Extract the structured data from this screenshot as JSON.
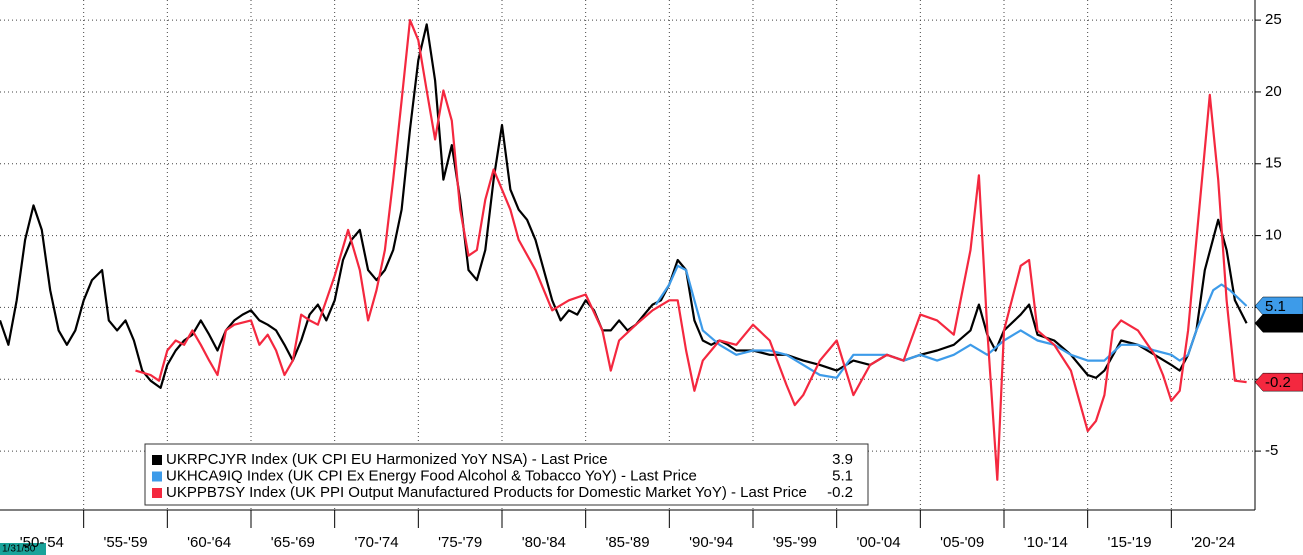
{
  "chart_data": {
    "type": "line",
    "start_label": "1/31/50",
    "categories": [
      "'50-'54",
      "'55-'59",
      "'60-'64",
      "'65-'69",
      "'70-'74",
      "'75-'79",
      "'80-'84",
      "'85-'89",
      "'90-'94",
      "'95-'99",
      "'00-'04",
      "'05-'09",
      "'10-'14",
      "'15-'19",
      "'20-'24"
    ],
    "xlim": [
      1950,
      2025
    ],
    "xticks": [
      1955,
      1960,
      1965,
      1970,
      1975,
      1980,
      1985,
      1990,
      1995,
      2000,
      2005,
      2010,
      2015,
      2020
    ],
    "ylim": [
      -9.1,
      26.4
    ],
    "yticks": [
      -5,
      0,
      5,
      10,
      15,
      20,
      25
    ],
    "grid": true,
    "series": [
      {
        "name": "UKRPCJYR Index (UK CPI EU Harmonized YoY NSA) - Last Price",
        "color": "#000000",
        "x": [
          1950,
          1950.5,
          1951,
          1951.5,
          1952,
          1952.5,
          1953,
          1953.5,
          1954,
          1954.5,
          1955,
          1955.5,
          1956.1,
          1956.5,
          1957,
          1957.5,
          1958,
          1958.5,
          1959,
          1959.6,
          1960,
          1960.5,
          1961,
          1961.5,
          1962,
          1962.5,
          1963,
          1963.5,
          1964,
          1964.5,
          1965,
          1965.5,
          1966,
          1966.5,
          1967,
          1967.5,
          1968,
          1968.5,
          1969,
          1969.5,
          1970,
          1970.5,
          1971,
          1971.5,
          1972,
          1972.5,
          1973,
          1973.5,
          1974,
          1974.5,
          1975,
          1975.5,
          1976,
          1976.5,
          1977,
          1977.5,
          1978,
          1978.5,
          1979,
          1979.5,
          1980,
          1980.5,
          1981,
          1981.5,
          1982,
          1982.5,
          1983,
          1983.5,
          1984,
          1984.5,
          1985,
          1985.5,
          1986,
          1986.5,
          1987,
          1987.5,
          1988,
          1988.5,
          1989,
          1989.5,
          1990,
          1990.5,
          1991,
          1991.5,
          1992,
          1992.5,
          1993,
          1993.5,
          1994,
          1995,
          1996,
          1997,
          1998,
          1999,
          2000,
          2001,
          2002,
          2003,
          2004,
          2005,
          2006,
          2007,
          2008,
          2008.5,
          2009,
          2009.5,
          2010,
          2011,
          2011.5,
          2012,
          2013,
          2014,
          2015,
          2015.5,
          2016,
          2017,
          2018,
          2019,
          2020,
          2020.5,
          2021,
          2021.5,
          2022,
          2022.8,
          2023.3,
          2023.8,
          2024.5
        ],
        "values": [
          4.1,
          2.4,
          5.5,
          9.7,
          12.1,
          10.4,
          6.2,
          3.4,
          2.4,
          3.4,
          5.5,
          6.9,
          7.6,
          4.1,
          3.4,
          4.1,
          2.7,
          0.6,
          -0.1,
          -0.6,
          1.0,
          2.0,
          2.7,
          3.1,
          4.1,
          3.1,
          2.0,
          3.4,
          4.1,
          4.5,
          4.8,
          4.1,
          3.8,
          3.4,
          2.4,
          1.3,
          2.7,
          4.5,
          5.2,
          4.1,
          5.5,
          8.3,
          9.7,
          10.4,
          7.6,
          6.9,
          7.6,
          9.0,
          11.8,
          17.4,
          22.2,
          24.7,
          20.8,
          13.9,
          16.3,
          12.5,
          7.6,
          6.9,
          9.0,
          13.9,
          17.7,
          13.2,
          11.8,
          11.1,
          9.7,
          7.6,
          5.5,
          4.1,
          4.8,
          4.5,
          5.5,
          4.8,
          3.4,
          3.4,
          4.1,
          3.4,
          3.8,
          4.5,
          5.2,
          5.5,
          6.6,
          8.3,
          7.6,
          4.1,
          2.7,
          2.4,
          2.7,
          2.4,
          2.0,
          2.0,
          1.7,
          1.7,
          1.3,
          1.0,
          0.6,
          1.3,
          1.0,
          1.7,
          1.3,
          1.7,
          2.0,
          2.4,
          3.4,
          5.2,
          3.1,
          2.0,
          3.4,
          4.5,
          5.2,
          3.1,
          2.7,
          1.7,
          0.3,
          0.1,
          0.6,
          2.7,
          2.4,
          1.7,
          1.0,
          0.6,
          1.7,
          3.4,
          7.6,
          11.1,
          9.0,
          5.5,
          3.9
        ]
      },
      {
        "name": "UKHCA9IQ Index (UK CPI Ex Energy Food Alcohol & Tobacco YoY) - Last Price",
        "color": "#3d9be9",
        "x": [
          1989.2,
          1990,
          1990.5,
          1991,
          1991.5,
          1992,
          1993,
          1994,
          1995,
          1996,
          1997,
          1998,
          1999,
          2000,
          2001,
          2002,
          2003,
          2004,
          2005,
          2006,
          2007,
          2008,
          2009,
          2010,
          2011,
          2012,
          2013,
          2014,
          2015,
          2016,
          2017,
          2018,
          2019,
          2020,
          2020.5,
          2021,
          2021.5,
          2022,
          2022.5,
          2023,
          2023.5,
          2024.5
        ],
        "values": [
          5.2,
          6.6,
          7.9,
          7.6,
          5.5,
          3.4,
          2.4,
          1.7,
          2.0,
          2.0,
          1.7,
          1.0,
          0.3,
          0.1,
          1.7,
          1.7,
          1.7,
          1.3,
          1.7,
          1.3,
          1.7,
          2.4,
          1.7,
          2.7,
          3.4,
          2.7,
          2.4,
          1.7,
          1.3,
          1.3,
          2.4,
          2.4,
          2.0,
          1.7,
          1.3,
          1.7,
          3.4,
          4.8,
          6.2,
          6.6,
          6.2,
          5.1
        ]
      },
      {
        "name": "UKPPB7SY Index (UK PPI Output Manufactured Products for Domestic Market YoY) - Last Price",
        "color": "#f4283f",
        "x": [
          1958.1,
          1959,
          1959.5,
          1960,
          1960.5,
          1961,
          1961.5,
          1962,
          1962.5,
          1963,
          1963.5,
          1964,
          1965,
          1965.5,
          1966,
          1966.5,
          1967,
          1967.5,
          1968,
          1968.5,
          1969,
          1970,
          1970.8,
          1971.5,
          1972,
          1972.5,
          1973,
          1973.5,
          1974,
          1974.5,
          1975,
          1975.5,
          1976,
          1976.5,
          1977,
          1977.5,
          1978,
          1978.5,
          1979,
          1979.5,
          1980,
          1980.5,
          1981,
          1982,
          1983,
          1984,
          1985,
          1986,
          1986.5,
          1987,
          1988,
          1989,
          1990,
          1990.5,
          1991,
          1991.5,
          1992,
          1993,
          1994,
          1995,
          1996,
          1997,
          1997.5,
          1998,
          1999,
          2000,
          2001,
          2002,
          2003,
          2004,
          2005,
          2006,
          2007,
          2008,
          2008.5,
          2009,
          2009.6,
          2010,
          2011,
          2011.5,
          2012,
          2013,
          2014,
          2014.5,
          2015,
          2015.5,
          2016,
          2016.5,
          2017,
          2018,
          2019,
          2019.5,
          2020,
          2020.5,
          2021,
          2021.5,
          2022,
          2022.3,
          2022.8,
          2023.3,
          2023.8,
          2024.5
        ],
        "values": [
          0.6,
          0.3,
          -0.1,
          2.0,
          2.7,
          2.4,
          3.4,
          2.4,
          1.3,
          0.3,
          3.4,
          3.8,
          4.1,
          2.4,
          3.1,
          2.0,
          0.3,
          1.3,
          4.5,
          4.1,
          3.8,
          7.2,
          10.4,
          7.6,
          4.1,
          6.2,
          9.0,
          13.9,
          19.4,
          25.0,
          23.6,
          20.1,
          16.7,
          20.1,
          18.0,
          11.8,
          8.6,
          9.0,
          12.5,
          14.6,
          13.2,
          11.8,
          9.7,
          7.6,
          4.8,
          5.5,
          5.9,
          3.4,
          0.6,
          2.7,
          3.8,
          4.8,
          5.5,
          5.5,
          2.0,
          -0.8,
          1.3,
          2.7,
          2.4,
          3.8,
          2.7,
          -0.4,
          -1.8,
          -1.1,
          1.3,
          2.7,
          -1.1,
          1.0,
          1.7,
          1.3,
          4.5,
          4.1,
          3.1,
          9.0,
          14.2,
          3.4,
          -7.0,
          3.4,
          7.9,
          8.3,
          3.4,
          2.4,
          0.6,
          -1.5,
          -3.6,
          -2.9,
          -1.1,
          3.4,
          4.1,
          3.4,
          1.7,
          0.3,
          -1.5,
          -0.8,
          3.4,
          9.7,
          16.0,
          19.8,
          13.9,
          5.5,
          -0.1,
          -0.2
        ]
      }
    ]
  }
}
